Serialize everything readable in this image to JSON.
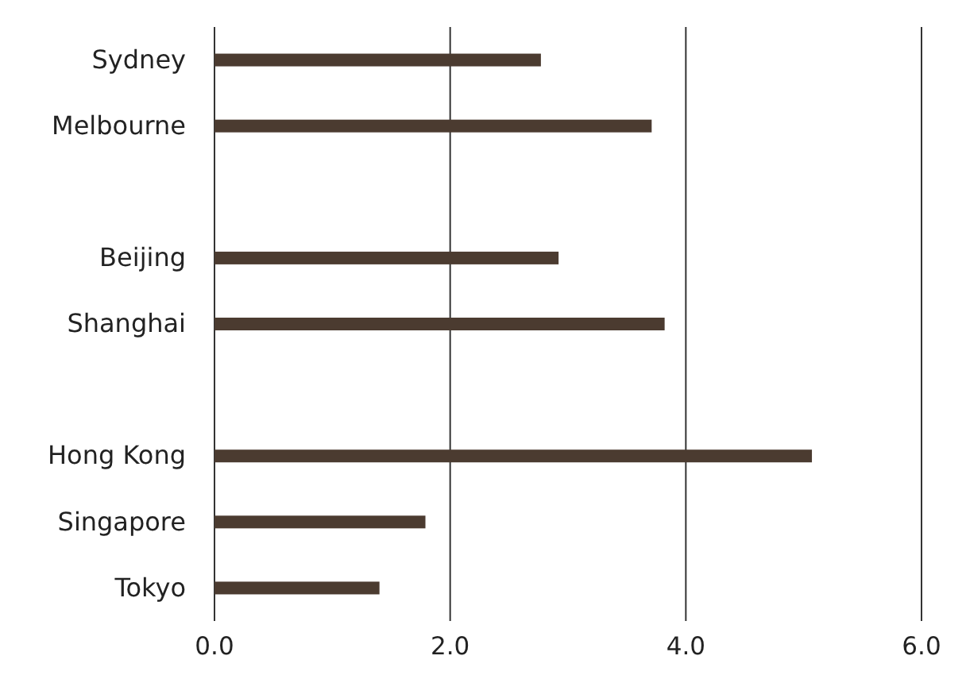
{
  "chart_data": {
    "type": "bar",
    "orientation": "horizontal",
    "categories": [
      "Sydney",
      "Melbourne",
      null,
      "Beijing",
      "Shanghai",
      null,
      "Hong Kong",
      "Singapore",
      "Tokyo"
    ],
    "values": [
      2.77,
      3.71,
      null,
      2.92,
      3.82,
      null,
      5.07,
      1.79,
      1.4
    ],
    "color": "#4b3b30",
    "xlim": [
      0,
      6
    ],
    "xticks": [
      {
        "value": 0,
        "label": "0.0"
      },
      {
        "value": 2,
        "label": "2.0"
      },
      {
        "value": 4,
        "label": "4.0"
      },
      {
        "value": 6,
        "label": "6.0"
      }
    ],
    "grid": "x"
  }
}
